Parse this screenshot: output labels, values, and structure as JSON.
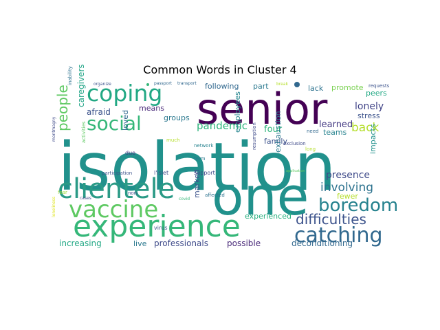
{
  "chart_data": {
    "type": "wordcloud",
    "title": "Common Words in Cluster 4",
    "words": [
      {
        "text": "isolation",
        "color": "#21918c"
      },
      {
        "text": "one",
        "color": "#21918c"
      },
      {
        "text": "senior",
        "color": "#440154"
      },
      {
        "text": "experience",
        "color": "#35b779"
      },
      {
        "text": "clientele",
        "color": "#2a9a86"
      },
      {
        "text": "vaccine",
        "color": "#5ec962"
      },
      {
        "text": "coping",
        "color": "#22a884"
      },
      {
        "text": "social",
        "color": "#35b779"
      },
      {
        "text": "catching",
        "color": "#31688e"
      },
      {
        "text": "boredom",
        "color": "#26828e"
      },
      {
        "text": "difficulties",
        "color": "#3b528b"
      },
      {
        "text": "involving",
        "color": "#2c728e"
      },
      {
        "text": "people",
        "color": "#5ec962"
      },
      {
        "text": "back",
        "color": "#b5de2b"
      },
      {
        "text": "pandemic",
        "color": "#2fb47c"
      },
      {
        "text": "lonely",
        "color": "#414487"
      },
      {
        "text": "learned",
        "color": "#443a83"
      },
      {
        "text": "presence",
        "color": "#3e4a89"
      },
      {
        "text": "following",
        "color": "#31688e"
      },
      {
        "text": "part",
        "color": "#2a788e"
      },
      {
        "text": "lack",
        "color": "#2c728e"
      },
      {
        "text": "promote",
        "color": "#7ad151"
      },
      {
        "text": "peers",
        "color": "#22a884"
      },
      {
        "text": "stress",
        "color": "#3b528b"
      },
      {
        "text": "means",
        "color": "#482878"
      },
      {
        "text": "afraid",
        "color": "#3b528b"
      },
      {
        "text": "caregivers",
        "color": "#20a486"
      },
      {
        "text": "groups",
        "color": "#2a788e"
      },
      {
        "text": "four",
        "color": "#2fb47c"
      },
      {
        "text": "teams",
        "color": "#26828e"
      },
      {
        "text": "family",
        "color": "#3b528b"
      },
      {
        "text": "employees",
        "color": "#25858e"
      },
      {
        "text": "loved",
        "color": "#31688e"
      },
      {
        "text": "exhaustion",
        "color": "#2a788e"
      },
      {
        "text": "impacts",
        "color": "#21918c"
      },
      {
        "text": "fewer",
        "color": "#b5de2b"
      },
      {
        "text": "experienced",
        "color": "#29af7f"
      },
      {
        "text": "marked",
        "color": "#3b528b"
      },
      {
        "text": "increasing",
        "color": "#22a884"
      },
      {
        "text": "live",
        "color": "#2a788e"
      },
      {
        "text": "professionals",
        "color": "#3e4a89"
      },
      {
        "text": "possible",
        "color": "#482878"
      },
      {
        "text": "deconditioning",
        "color": "#31688e"
      },
      {
        "text": "requests",
        "color": "#3b528b"
      },
      {
        "text": "need",
        "color": "#31688e"
      },
      {
        "text": "exclusion",
        "color": "#3e4a89"
      },
      {
        "text": "long",
        "color": "#b5de2b"
      },
      {
        "text": "resumption",
        "color": "#3e4a89"
      },
      {
        "text": "network",
        "color": "#26828e"
      },
      {
        "text": "term",
        "color": "#2a788e"
      },
      {
        "text": "support",
        "color": "#3e4a89"
      },
      {
        "text": "l'islet",
        "color": "#3e4a89"
      },
      {
        "text": "participation",
        "color": "#3b528b"
      },
      {
        "text": "affected",
        "color": "#2c728e"
      },
      {
        "text": "virus",
        "color": "#3b528b"
      },
      {
        "text": "covid",
        "color": "#35b779"
      },
      {
        "text": "non",
        "color": "#3e4a89"
      },
      {
        "text": "due",
        "color": "#443a83"
      },
      {
        "text": "much",
        "color": "#b5de2b"
      },
      {
        "text": "activities",
        "color": "#5ec962"
      },
      {
        "text": "inability",
        "color": "#2c728e"
      },
      {
        "text": "montmagny",
        "color": "#3e4a89"
      },
      {
        "text": "fear",
        "color": "#9fda3a"
      },
      {
        "text": "loneliness",
        "color": "#dde318"
      },
      {
        "text": "organize",
        "color": "#3b528b"
      },
      {
        "text": "passport",
        "color": "#31688e"
      },
      {
        "text": "transport",
        "color": "#31688e"
      },
      {
        "text": "break",
        "color": "#b5de2b"
      },
      {
        "text": "cases",
        "color": "#3e4a89"
      },
      {
        "text": "application",
        "color": "#5ec962"
      }
    ]
  }
}
